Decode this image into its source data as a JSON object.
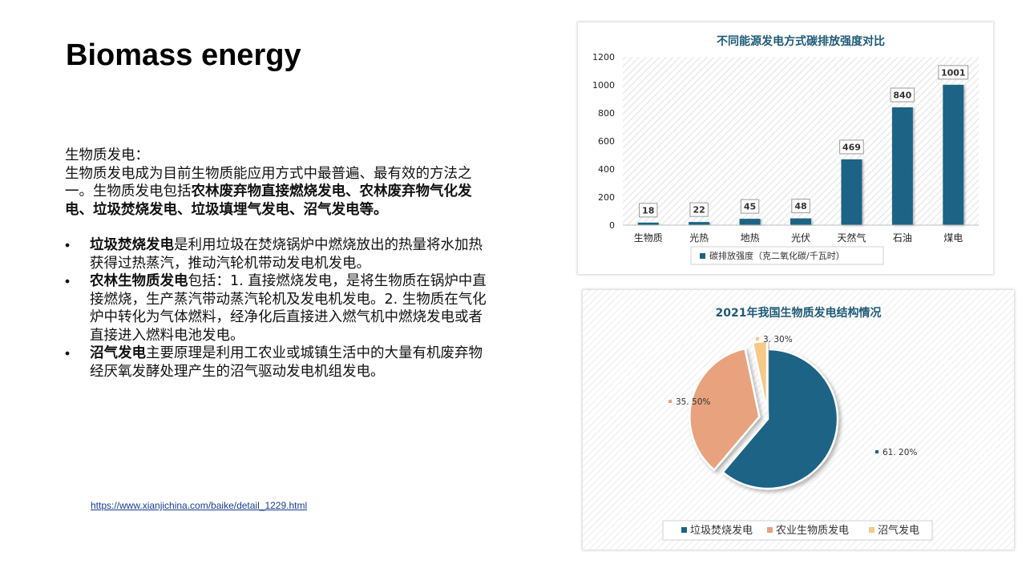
{
  "slide": {
    "title": "Biomass energy",
    "intro_heading": "生物质发电：",
    "intro_text": "生物质发电成为目前生物质能应用方式中最普遍、最有效的方法之一。生物质发电包括",
    "intro_bold": "农林废弃物直接燃烧发电、农林废弃物气化发电、垃圾焚烧发电、垃圾填埋气发电、沼气发电等。",
    "bullets": [
      {
        "bullet": "•",
        "bold": "垃圾焚烧发电",
        "text": "是利用垃圾在焚烧锅炉中燃烧放出的热量将水加热获得过热蒸汽，推动汽轮机带动发电机发电。"
      },
      {
        "bullet": "•",
        "bold": "农林生物质发电",
        "text": "包括：1. 直接燃烧发电，是将生物质在锅炉中直接燃烧，生产蒸汽带动蒸汽轮机及发电机发电。2. 生物质在气化炉中转化为气体燃料，经净化后直接进入燃气机中燃烧发电或者直接进入燃料电池发电。"
      },
      {
        "bullet": "•",
        "bold": "沼气发电",
        "text": "主要原理是利用工农业或城镇生活中的大量有机废弃物经厌氧发酵处理产生的沼气驱动发电机组发电。"
      }
    ],
    "source_link": "https://www.xianjichina.com/baike/detail_1229.html"
  },
  "chart_data": [
    {
      "type": "bar",
      "title": "不同能源发电方式碳排放强度对比",
      "categories": [
        "生物质",
        "光热",
        "地热",
        "光伏",
        "天然气",
        "石油",
        "煤电"
      ],
      "series": [
        {
          "name": "碳排放强度（克二氧化碳/千瓦时）",
          "values": [
            18,
            22,
            45,
            48,
            469,
            840,
            1001
          ]
        }
      ],
      "yticks": [
        "0",
        "200",
        "400",
        "600",
        "800",
        "1000",
        "1200"
      ],
      "ylim": [
        0,
        1200
      ],
      "grid": false,
      "legend_position": "bottom",
      "color": "#1c6385"
    },
    {
      "type": "pie",
      "title": "2021年我国生物质发电结构情况",
      "slices": [
        {
          "name": "垃圾焚烧发电",
          "value": 61.2,
          "label": "61. 20%",
          "color": "#1c6385"
        },
        {
          "name": "农业生物质发电",
          "value": 35.5,
          "label": "35. 50%",
          "color": "#e8a27d"
        },
        {
          "name": "沼气发电",
          "value": 3.3,
          "label": "3. 30%",
          "color": "#f6c986"
        }
      ],
      "legend_position": "bottom"
    }
  ]
}
